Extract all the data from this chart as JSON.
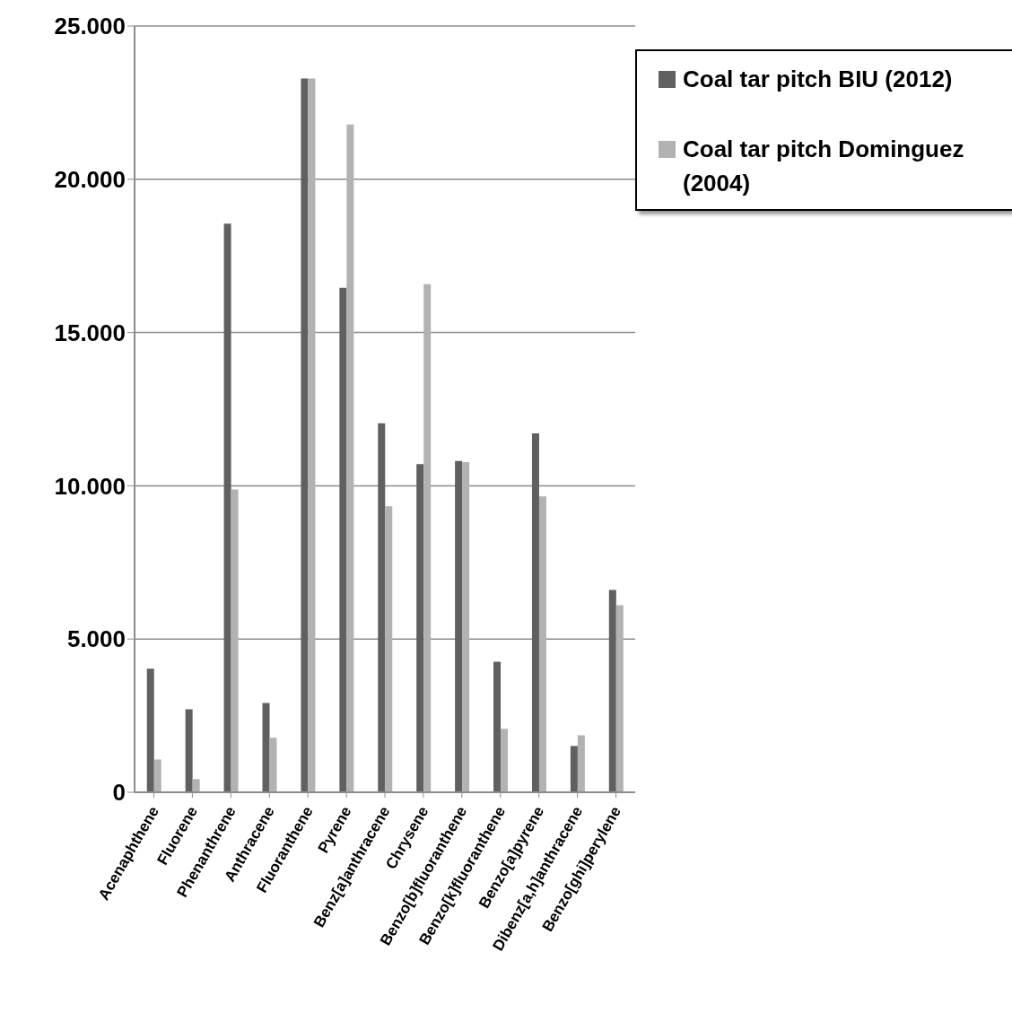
{
  "chart_data": {
    "type": "bar",
    "categories": [
      "Acenaphthene",
      "Fluorene",
      "Phenanthrene",
      "Anthracene",
      "Fluoranthene",
      "Pyrene",
      "Benz[a]anthracene",
      "Chrysene",
      "Benzo[b]fluoranthene",
      "Benzo[k]fluoranthene",
      "Benzo[a]pyrene",
      "Dibenz[a,h]anthracene",
      "Benzo[ghi]perylene"
    ],
    "series": [
      {
        "name": "Coal tar pitch BIU (2012)",
        "color": "#606060",
        "values": [
          4030,
          2710,
          18550,
          2910,
          23290,
          16460,
          12040,
          10710,
          10810,
          4260,
          11710,
          1510,
          6600
        ]
      },
      {
        "name": "Coal tar pitch Dominguez (2004)",
        "color": "#b2b2b2",
        "values": [
          1070,
          430,
          9880,
          1780,
          23290,
          21790,
          9330,
          16580,
          10770,
          2070,
          9650,
          1860,
          6100
        ]
      }
    ],
    "ylim": [
      0,
      25000
    ],
    "yticks": [
      {
        "value": 0,
        "label": "0"
      },
      {
        "value": 5000,
        "label": "5.000"
      },
      {
        "value": 10000,
        "label": "10.000"
      },
      {
        "value": 15000,
        "label": "15.000"
      },
      {
        "value": 20000,
        "label": "20.000"
      },
      {
        "value": 25000,
        "label": "25.000"
      }
    ],
    "grid": "y",
    "legend": "top right"
  }
}
